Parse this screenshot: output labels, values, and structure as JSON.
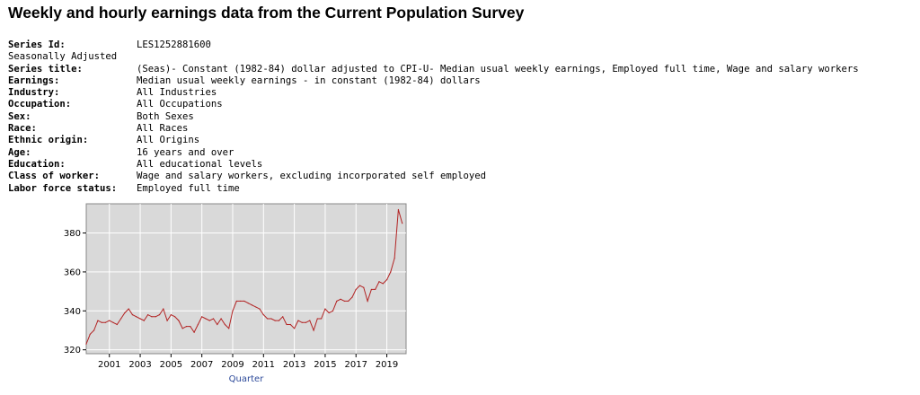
{
  "page": {
    "title": "Weekly and hourly earnings data from the Current Population Survey"
  },
  "series_info": {
    "series_id_label": "Series Id:",
    "series_id": "LES1252881600",
    "seasonal": "Seasonally Adjusted",
    "rows": [
      {
        "label": "Series title:",
        "value": "(Seas)- Constant (1982-84) dollar adjusted to CPI-U- Median usual weekly earnings, Employed full time, Wage and salary workers"
      },
      {
        "label": "Earnings:",
        "value": "Median usual weekly earnings - in constant (1982-84) dollars"
      },
      {
        "label": "Industry:",
        "value": "All Industries"
      },
      {
        "label": "Occupation:",
        "value": "All Occupations"
      },
      {
        "label": "Sex:",
        "value": "Both Sexes"
      },
      {
        "label": "Race:",
        "value": "All Races"
      },
      {
        "label": "Ethnic origin:",
        "value": "All Origins"
      },
      {
        "label": "Age:",
        "value": "16 years and over"
      },
      {
        "label": "Education:",
        "value": "All educational levels"
      },
      {
        "label": "Class of worker:",
        "value": "Wage and salary workers, excluding incorporated self employed"
      },
      {
        "label": "Labor force status:",
        "value": "Employed full time"
      }
    ]
  },
  "colors": {
    "plot_background": "#d9d9d9",
    "gridline": "#ffffff",
    "line": "#b22222",
    "axis_title": "#2d4a9a"
  },
  "chart_data": {
    "type": "line",
    "title": "",
    "xlabel": "Quarter",
    "ylabel": "",
    "x_ticks": [
      "2001",
      "2003",
      "2005",
      "2007",
      "2009",
      "2011",
      "2013",
      "2015",
      "2017",
      "2019"
    ],
    "y_ticks": [
      320,
      340,
      360,
      380
    ],
    "xlim": [
      2000.0,
      2020.75
    ],
    "ylim": [
      318,
      395
    ],
    "grid": true,
    "series": [
      {
        "x": [
          "2000 Q1",
          "2000 Q2",
          "2000 Q3",
          "2000 Q4",
          "2001 Q1",
          "2001 Q2",
          "2001 Q3",
          "2001 Q4",
          "2002 Q1",
          "2002 Q2",
          "2002 Q3",
          "2002 Q4",
          "2003 Q1",
          "2003 Q2",
          "2003 Q3",
          "2003 Q4",
          "2004 Q1",
          "2004 Q2",
          "2004 Q3",
          "2004 Q4",
          "2005 Q1",
          "2005 Q2",
          "2005 Q3",
          "2005 Q4",
          "2006 Q1",
          "2006 Q2",
          "2006 Q3",
          "2006 Q4",
          "2007 Q1",
          "2007 Q2",
          "2007 Q3",
          "2007 Q4",
          "2008 Q1",
          "2008 Q2",
          "2008 Q3",
          "2008 Q4",
          "2009 Q1",
          "2009 Q2",
          "2009 Q3",
          "2009 Q4",
          "2010 Q1",
          "2010 Q2",
          "2010 Q3",
          "2010 Q4",
          "2011 Q1",
          "2011 Q2",
          "2011 Q3",
          "2011 Q4",
          "2012 Q1",
          "2012 Q2",
          "2012 Q3",
          "2012 Q4",
          "2013 Q1",
          "2013 Q2",
          "2013 Q3",
          "2013 Q4",
          "2014 Q1",
          "2014 Q2",
          "2014 Q3",
          "2014 Q4",
          "2015 Q1",
          "2015 Q2",
          "2015 Q3",
          "2015 Q4",
          "2016 Q1",
          "2016 Q2",
          "2016 Q3",
          "2016 Q4",
          "2017 Q1",
          "2017 Q2",
          "2017 Q3",
          "2017 Q4",
          "2018 Q1",
          "2018 Q2",
          "2018 Q3",
          "2018 Q4",
          "2019 Q1",
          "2019 Q2",
          "2019 Q3",
          "2019 Q4",
          "2020 Q1",
          "2020 Q2",
          "2020 Q3"
        ],
        "values": [
          323,
          328,
          330,
          335,
          334,
          334,
          335,
          334,
          333,
          336,
          339,
          341,
          338,
          337,
          336,
          335,
          338,
          337,
          337,
          338,
          341,
          335,
          338,
          337,
          335,
          331,
          332,
          332,
          329,
          333,
          337,
          336,
          335,
          336,
          333,
          336,
          333,
          331,
          340,
          345,
          345,
          345,
          344,
          343,
          342,
          341,
          338,
          336,
          336,
          335,
          335,
          337,
          333,
          333,
          331,
          335,
          334,
          334,
          335,
          330,
          336,
          336,
          341,
          339,
          340,
          345,
          346,
          345,
          345,
          347,
          351,
          353,
          352,
          345,
          351,
          351,
          355,
          354,
          356,
          360,
          367,
          392,
          385
        ]
      }
    ]
  }
}
